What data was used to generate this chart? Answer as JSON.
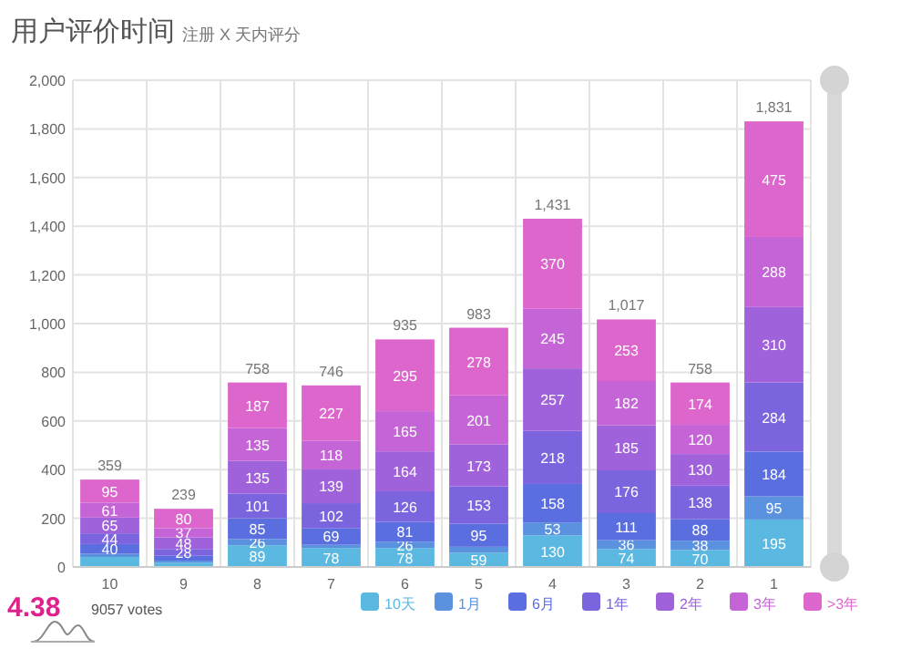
{
  "chart_data": {
    "type": "bar",
    "title": "用户评价时间",
    "subtitle": "注册 X 天内评分",
    "categories": [
      "10",
      "9",
      "8",
      "7",
      "6",
      "5",
      "4",
      "3",
      "2",
      "1"
    ],
    "stacked": true,
    "series": [
      {
        "name": "10天",
        "color": "#5bb8e0",
        "values": [
          41,
          18,
          89,
          78,
          78,
          59,
          130,
          74,
          70,
          195
        ],
        "value_labels": [
          null,
          null,
          "89",
          "78",
          "78",
          "59",
          "130",
          "74",
          "70",
          "195"
        ]
      },
      {
        "name": "1月",
        "color": "#5b92e0",
        "values": [
          13,
          8,
          26,
          13,
          26,
          24,
          53,
          36,
          38,
          95
        ],
        "value_labels": [
          null,
          null,
          "26",
          null,
          "26",
          null,
          "53",
          "36",
          "38",
          "95"
        ]
      },
      {
        "name": "6月",
        "color": "#5b6ee0",
        "values": [
          40,
          20,
          85,
          69,
          81,
          95,
          158,
          111,
          88,
          184
        ],
        "value_labels": [
          "40",
          null,
          "85",
          "69",
          "81",
          "95",
          "158",
          "111",
          "88",
          "184"
        ]
      },
      {
        "name": "1年",
        "color": "#7b64de",
        "values": [
          44,
          28,
          101,
          102,
          126,
          153,
          218,
          176,
          138,
          284
        ],
        "value_labels": [
          "44",
          "28",
          "101",
          "102",
          "126",
          "153",
          "218",
          "176",
          "138",
          "284"
        ]
      },
      {
        "name": "2年",
        "color": "#a062da",
        "values": [
          65,
          48,
          135,
          139,
          164,
          173,
          257,
          185,
          130,
          310
        ],
        "value_labels": [
          "65",
          "48",
          "135",
          "139",
          "164",
          "173",
          "257",
          "185",
          "130",
          "310"
        ]
      },
      {
        "name": "3年",
        "color": "#c464d6",
        "values": [
          61,
          37,
          135,
          118,
          165,
          201,
          245,
          182,
          120,
          288
        ],
        "value_labels": [
          "61",
          "37",
          "135",
          "118",
          "165",
          "201",
          "245",
          "182",
          "120",
          "288"
        ]
      },
      {
        "name": ">3年",
        "color": "#dd66cc",
        "values": [
          95,
          80,
          187,
          227,
          295,
          278,
          370,
          253,
          174,
          475
        ],
        "value_labels": [
          "95",
          "80",
          "187",
          "227",
          "295",
          "278",
          "370",
          "253",
          "174",
          "475"
        ]
      }
    ],
    "totals": [
      "359",
      "239",
      "758",
      "746",
      "935",
      "983",
      "1,431",
      "1,017",
      "758",
      "1,831"
    ],
    "ylim": [
      0,
      2000
    ],
    "yticks": [
      0,
      200,
      400,
      600,
      800,
      {
        "value": 1000,
        "label": "1,000"
      },
      {
        "value": 1200,
        "label": "1,200"
      },
      {
        "value": 1400,
        "label": "1,400"
      },
      {
        "value": 1600,
        "label": "1,600"
      },
      {
        "value": 1800,
        "label": "1,800"
      },
      {
        "value": 2000,
        "label": "2,000"
      }
    ],
    "grid": true,
    "legend": "bottom right",
    "annotations": [
      "4.38",
      "9057 votes"
    ]
  }
}
